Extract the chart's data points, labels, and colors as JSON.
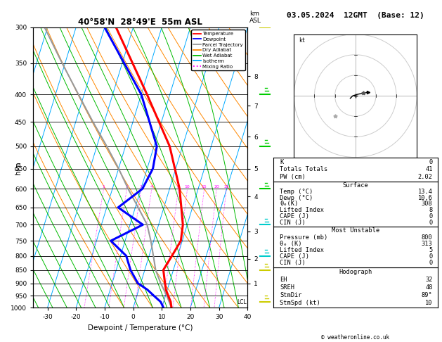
{
  "title_left": "40°58'N  28°49'E  55m ASL",
  "title_right": "03.05.2024  12GMT  (Base: 12)",
  "xlabel": "Dewpoint / Temperature (°C)",
  "ylabel_left": "hPa",
  "pressure_levels": [
    300,
    350,
    400,
    450,
    500,
    550,
    600,
    650,
    700,
    750,
    800,
    850,
    900,
    950,
    1000
  ],
  "temp_data": {
    "pressure": [
      1000,
      975,
      950,
      925,
      900,
      850,
      800,
      750,
      700,
      600,
      500,
      400,
      300
    ],
    "temp": [
      13.4,
      12.5,
      11.0,
      9.5,
      8.5,
      6.5,
      8.0,
      9.5,
      8.5,
      3.5,
      -4.5,
      -18.0,
      -36.0
    ]
  },
  "dewp_data": {
    "pressure": [
      1000,
      975,
      950,
      925,
      900,
      850,
      800,
      750,
      700,
      650,
      600,
      550,
      500,
      400,
      300
    ],
    "dewp": [
      10.6,
      9.0,
      6.0,
      3.0,
      -1.0,
      -5.0,
      -8.0,
      -15.0,
      -5.5,
      -16.0,
      -9.5,
      -8.0,
      -9.0,
      -20.0,
      -40.0
    ]
  },
  "parcel_data": {
    "pressure": [
      1000,
      950,
      900,
      850,
      800,
      750,
      700,
      650,
      600,
      550,
      500,
      450,
      400,
      350,
      300
    ],
    "temp": [
      13.4,
      10.5,
      7.0,
      3.8,
      1.5,
      -1.0,
      -4.0,
      -9.0,
      -14.5,
      -20.0,
      -26.5,
      -34.0,
      -42.0,
      -51.0,
      -61.0
    ]
  },
  "surface_temp": 13.4,
  "surface_dewp": 10.6,
  "surface_theta_e": 308,
  "surface_lifted_index": 8,
  "surface_cape": 0,
  "surface_cin": 0,
  "mu_pressure": 800,
  "mu_theta_e": 313,
  "mu_lifted_index": 5,
  "mu_cape": 0,
  "mu_cin": 0,
  "K": 0,
  "totals_totals": 41,
  "PW": 2.02,
  "EH": 32,
  "SREH": 48,
  "StmDir": 89,
  "StmSpd": 10,
  "LCL_pressure": 975,
  "mixing_ratio_lines": [
    1,
    2,
    3,
    4,
    8,
    10,
    15,
    20,
    25
  ],
  "mixing_ratio_labels": [
    "1",
    "2",
    "3",
    "4",
    "8",
    "10",
    "15",
    "20",
    "25"
  ],
  "right_axis_km": [
    1,
    2,
    3,
    4,
    5,
    6,
    7,
    8
  ],
  "right_axis_km_pressures": [
    900,
    810,
    720,
    620,
    550,
    480,
    420,
    370
  ],
  "colors": {
    "temperature": "#ff0000",
    "dewpoint": "#0000ff",
    "parcel": "#999999",
    "dry_adiabat": "#ff8800",
    "wet_adiabat": "#00bb00",
    "isotherm": "#00aaff",
    "mixing_ratio": "#ff00ff",
    "background": "#ffffff",
    "grid": "#000000"
  },
  "xlim": [
    -35,
    40
  ],
  "p_min": 300,
  "p_max": 1000,
  "skew_factor": 30.0,
  "legend_entries": [
    "Temperature",
    "Dewpoint",
    "Parcel Trajectory",
    "Dry Adiabat",
    "Wet Adiabat",
    "Isotherm",
    "Mixing Ratio"
  ],
  "legend_colors": [
    "#ff0000",
    "#0000ff",
    "#999999",
    "#ff8800",
    "#00bb00",
    "#00aaff",
    "#ff00ff"
  ],
  "legend_styles": [
    "solid",
    "solid",
    "solid",
    "solid",
    "solid",
    "solid",
    "dotted"
  ],
  "copyright": "© weatheronline.co.uk",
  "wind_barbs": {
    "pressures": [
      975,
      850,
      800,
      700,
      600,
      500,
      400,
      300
    ],
    "colors": [
      "#cccc00",
      "#cccc00",
      "#00cccc",
      "#00cccc",
      "#00cc00",
      "#00cc00",
      "#00cc00",
      "#cccc00"
    ]
  }
}
